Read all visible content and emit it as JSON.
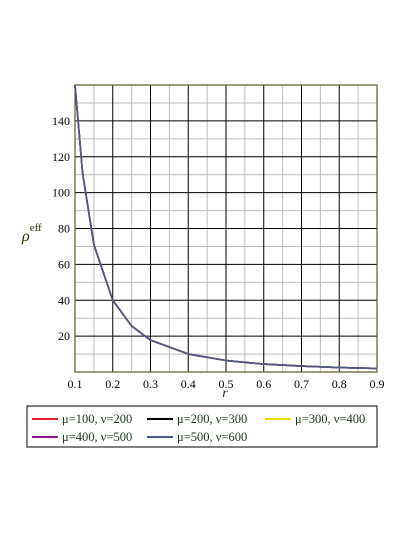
{
  "chart_data": {
    "type": "line",
    "x_range": [
      0.1,
      0.9
    ],
    "y_range": [
      0,
      160
    ],
    "x_ticks": [
      "0.1",
      "0.2",
      "0.3",
      "0.4",
      "0.5",
      "0.6",
      "0.7",
      "0.8",
      "0.9"
    ],
    "y_ticks": [
      "20",
      "40",
      "60",
      "80",
      "100",
      "120",
      "140"
    ],
    "xlabel": "r",
    "ylabel": "ρ",
    "ylabel_sup": "eff",
    "grid": true,
    "legend_position": "bottom",
    "x": [
      0.1,
      0.12,
      0.15,
      0.2,
      0.25,
      0.3,
      0.4,
      0.5,
      0.6,
      0.7,
      0.8,
      0.9
    ],
    "series": [
      {
        "name": "μ=100, ν=200",
        "color": "#e8202a",
        "y": [
          160,
          111,
          71,
          40,
          25.6,
          17.8,
          10,
          6.4,
          4.4,
          3.3,
          2.5,
          2.0
        ]
      },
      {
        "name": "μ=200, ν=300",
        "color": "#000000",
        "y": [
          160,
          111,
          71,
          40,
          25.6,
          17.8,
          10,
          6.4,
          4.4,
          3.3,
          2.5,
          2.0
        ]
      },
      {
        "name": "μ=300, ν=400",
        "color": "#f0d800",
        "y": [
          160,
          111,
          71,
          40,
          25.6,
          17.8,
          10,
          6.4,
          4.4,
          3.3,
          2.5,
          2.0
        ]
      },
      {
        "name": "μ=400, ν=500",
        "color": "#8a1a8a",
        "y": [
          160,
          111,
          71,
          40,
          25.6,
          17.8,
          10,
          6.4,
          4.4,
          3.3,
          2.5,
          2.0
        ]
      },
      {
        "name": "μ=500, ν=600",
        "color": "#4a5a8a",
        "y": [
          160,
          111,
          71,
          40,
          25.6,
          17.8,
          10,
          6.4,
          4.4,
          3.3,
          2.5,
          2.0
        ]
      }
    ]
  }
}
